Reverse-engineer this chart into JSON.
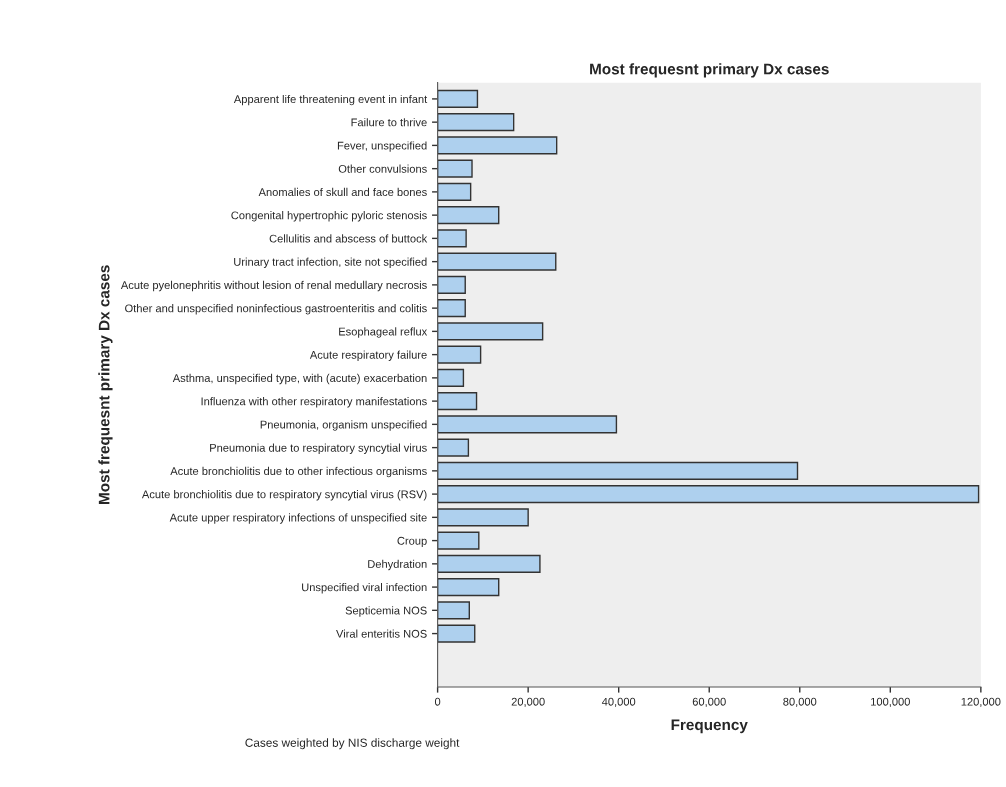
{
  "chart_data": {
    "type": "bar",
    "orientation": "horizontal",
    "title": "Most frequesnt primary Dx cases",
    "xlabel": "Frequency",
    "ylabel": "Most frequesnt primary Dx cases",
    "categories": [
      "Apparent life threatening event in infant",
      "Failure to thrive",
      "Fever, unspecified",
      "Other convulsions",
      "Anomalies of skull and face bones",
      "Congenital hypertrophic pyloric stenosis",
      "Cellulitis and abscess of buttock",
      "Urinary tract infection, site not specified",
      "Acute pyelonephritis without lesion of renal medullary necrosis",
      "Other and unspecified noninfectious gastroenteritis and colitis",
      "Esophageal reflux",
      "Acute respiratory failure",
      "Asthma, unspecified type, with (acute) exacerbation",
      "Influenza with other respiratory manifestations",
      "Pneumonia, organism unspecified",
      "Pneumonia due to respiratory syncytial virus",
      "Acute bronchiolitis due to other infectious organisms",
      "Acute bronchiolitis due to respiratory syncytial virus (RSV)",
      "Acute upper respiratory infections of unspecified site",
      "Croup",
      "Dehydration",
      "Unspecified viral infection",
      "Septicemia NOS",
      "Viral enteritis NOS"
    ],
    "values": [
      8800,
      16800,
      26300,
      7600,
      7300,
      13500,
      6300,
      26100,
      6100,
      6100,
      23200,
      9500,
      5700,
      8600,
      39500,
      6800,
      79500,
      119500,
      20000,
      9100,
      22600,
      13500,
      7000,
      8200
    ],
    "color": "#aed0ee",
    "xlim": [
      0,
      120000
    ],
    "xticks": [
      {
        "value": 0,
        "label": "0"
      },
      {
        "value": 20000,
        "label": "20,000"
      },
      {
        "value": 40000,
        "label": "40,000"
      },
      {
        "value": 60000,
        "label": "60,000"
      },
      {
        "value": 80000,
        "label": "80,000"
      },
      {
        "value": 100000,
        "label": "100,000"
      },
      {
        "value": 120000,
        "label": "120,000"
      }
    ],
    "grid": false,
    "legend": false,
    "annotations": [
      "Cases weighted by NIS discharge weight"
    ]
  }
}
